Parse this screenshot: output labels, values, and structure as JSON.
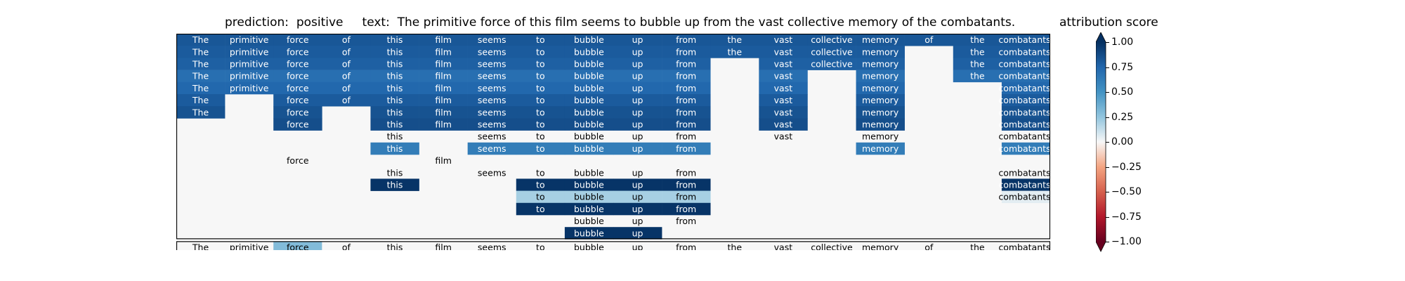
{
  "title": "prediction:  positive     text:  The primitive force of this film seems to bubble up from the vast collective memory of the combatants.",
  "colorbar": {
    "label": "attribution score",
    "ticks": [
      "1.00",
      "0.75",
      "0.50",
      "0.25",
      "0.00",
      "−0.25",
      "−0.50",
      "−0.75",
      "−1.00"
    ],
    "tick_values": [
      1,
      0.75,
      0.5,
      0.25,
      0,
      -0.25,
      -0.5,
      -0.75,
      -1
    ],
    "range": [
      -1,
      1
    ]
  },
  "chart_data": {
    "type": "heatmap",
    "tokens": [
      "The",
      "primitive",
      "force",
      "of",
      "this",
      "film",
      "seems",
      "to",
      "bubble",
      "up",
      "from",
      "the",
      "vast",
      "collective",
      "memory",
      "of",
      "the",
      "combatants."
    ],
    "rows": [
      {
        "vals": [
          0.82,
          0.82,
          0.82,
          0.82,
          0.82,
          0.82,
          0.82,
          0.82,
          0.82,
          0.82,
          0.82,
          0.82,
          0.82,
          0.82,
          0.82,
          0.82,
          0.82,
          0.82
        ],
        "labels": [
          1,
          1,
          1,
          1,
          1,
          1,
          1,
          1,
          1,
          1,
          1,
          1,
          1,
          1,
          1,
          1,
          1,
          1
        ]
      },
      {
        "vals": [
          0.8,
          0.8,
          0.8,
          0.8,
          0.8,
          0.8,
          0.8,
          0.8,
          0.8,
          0.8,
          0.8,
          0.8,
          0.8,
          0.8,
          0.8,
          0,
          0.8,
          0.8
        ],
        "labels": [
          1,
          1,
          1,
          1,
          1,
          1,
          1,
          1,
          1,
          1,
          1,
          1,
          1,
          1,
          1,
          0,
          1,
          1
        ]
      },
      {
        "vals": [
          0.78,
          0.78,
          0.78,
          0.78,
          0.78,
          0.78,
          0.78,
          0.78,
          0.78,
          0.78,
          0.78,
          0,
          0.78,
          0.78,
          0.78,
          0,
          0.78,
          0.78
        ],
        "labels": [
          1,
          1,
          1,
          1,
          1,
          1,
          1,
          1,
          1,
          1,
          1,
          0,
          1,
          1,
          1,
          0,
          1,
          1
        ]
      },
      {
        "vals": [
          0.7,
          0.7,
          0.7,
          0.7,
          0.7,
          0.7,
          0.7,
          0.7,
          0.7,
          0.7,
          0.7,
          0,
          0.7,
          0,
          0.7,
          0,
          0.7,
          0.7
        ],
        "labels": [
          1,
          1,
          1,
          1,
          1,
          1,
          1,
          1,
          1,
          1,
          1,
          0,
          1,
          0,
          1,
          0,
          1,
          1
        ]
      },
      {
        "vals": [
          0.74,
          0.74,
          0.74,
          0.74,
          0.74,
          0.74,
          0.74,
          0.74,
          0.74,
          0.74,
          0.74,
          0,
          0.74,
          0,
          0.74,
          0,
          0,
          0.74
        ],
        "labels": [
          1,
          1,
          1,
          1,
          1,
          1,
          1,
          1,
          1,
          1,
          1,
          0,
          1,
          0,
          1,
          0,
          0,
          1
        ]
      },
      {
        "vals": [
          0.8,
          0,
          0.8,
          0.8,
          0.8,
          0.8,
          0.8,
          0.8,
          0.8,
          0.8,
          0.8,
          0,
          0.8,
          0,
          0.8,
          0,
          0,
          0.8
        ],
        "labels": [
          1,
          0,
          1,
          1,
          1,
          1,
          1,
          1,
          1,
          1,
          1,
          0,
          1,
          0,
          1,
          0,
          0,
          1
        ]
      },
      {
        "vals": [
          0.84,
          0,
          0.84,
          0,
          0.84,
          0.84,
          0.84,
          0.84,
          0.84,
          0.84,
          0.84,
          0,
          0.84,
          0,
          0.84,
          0,
          0,
          0.84
        ],
        "labels": [
          1,
          0,
          1,
          0,
          1,
          1,
          1,
          1,
          1,
          1,
          1,
          0,
          1,
          0,
          1,
          0,
          0,
          1
        ]
      },
      {
        "vals": [
          0,
          0,
          0.86,
          0,
          0.86,
          0.86,
          0.86,
          0.86,
          0.86,
          0.86,
          0.86,
          0,
          0.86,
          0,
          0.86,
          0,
          0,
          0.86
        ],
        "labels": [
          0,
          0,
          1,
          0,
          1,
          1,
          1,
          1,
          1,
          1,
          1,
          0,
          1,
          0,
          1,
          0,
          0,
          1
        ]
      },
      {
        "vals": [
          0,
          0,
          0,
          0,
          0,
          0,
          0,
          0,
          0,
          0,
          0,
          0,
          0,
          0,
          0,
          0,
          0,
          0
        ],
        "labels": [
          0,
          0,
          0,
          0,
          1,
          0,
          1,
          1,
          1,
          1,
          1,
          0,
          1,
          0,
          1,
          0,
          0,
          1
        ]
      },
      {
        "vals": [
          0,
          0,
          0,
          0,
          0.62,
          0,
          0.62,
          0.62,
          0.62,
          0.62,
          0.62,
          0,
          0,
          0,
          0.62,
          0,
          0,
          0.62
        ],
        "labels": [
          0,
          0,
          0,
          0,
          1,
          0,
          1,
          1,
          1,
          1,
          1,
          0,
          0,
          0,
          1,
          0,
          0,
          1
        ]
      },
      {
        "vals": [
          0,
          0,
          0,
          0,
          0,
          0,
          0,
          0,
          0,
          0,
          0,
          0,
          0,
          0,
          0,
          0,
          0,
          0
        ],
        "labels": [
          0,
          0,
          1,
          0,
          0,
          1,
          0,
          0,
          0,
          0,
          0,
          0,
          0,
          0,
          0,
          0,
          0,
          0
        ]
      },
      {
        "vals": [
          0,
          0,
          0,
          0,
          0,
          0,
          0,
          0,
          0,
          0,
          0,
          0,
          0,
          0,
          0,
          0,
          0,
          0
        ],
        "labels": [
          0,
          0,
          0,
          0,
          1,
          0,
          1,
          1,
          1,
          1,
          1,
          0,
          0,
          0,
          0,
          0,
          0,
          1
        ]
      },
      {
        "vals": [
          0,
          0,
          0,
          0,
          0.98,
          0,
          0,
          0.98,
          0.98,
          0.98,
          0.98,
          0,
          0,
          0,
          0,
          0,
          0,
          0.98
        ],
        "labels": [
          0,
          0,
          0,
          0,
          1,
          0,
          0,
          1,
          1,
          1,
          1,
          0,
          0,
          0,
          0,
          0,
          0,
          1
        ]
      },
      {
        "vals": [
          0,
          0,
          0,
          0,
          0,
          0,
          0,
          0.2,
          0.2,
          0.2,
          0.2,
          0,
          0,
          0,
          0,
          0,
          0,
          0.05
        ],
        "labels": [
          0,
          0,
          0,
          0,
          0,
          0,
          0,
          1,
          1,
          1,
          1,
          0,
          0,
          0,
          0,
          0,
          0,
          1
        ]
      },
      {
        "vals": [
          0,
          0,
          0,
          0,
          0,
          0,
          0,
          0.98,
          0.98,
          0.98,
          0.98,
          0,
          0,
          0,
          0,
          0,
          0,
          0
        ],
        "labels": [
          0,
          0,
          0,
          0,
          0,
          0,
          0,
          1,
          1,
          1,
          1,
          0,
          0,
          0,
          0,
          0,
          0,
          0
        ]
      },
      {
        "vals": [
          0,
          0,
          0,
          0,
          0,
          0,
          0,
          0,
          0,
          0,
          0,
          0,
          0,
          0,
          0,
          0,
          0,
          0
        ],
        "labels": [
          0,
          0,
          0,
          0,
          0,
          0,
          0,
          0,
          1,
          1,
          1,
          0,
          0,
          0,
          0,
          0,
          0,
          0
        ]
      },
      {
        "vals": [
          0,
          0,
          0,
          0,
          0,
          0,
          0,
          0,
          0.98,
          0.98,
          0,
          0,
          0,
          0,
          0,
          0,
          0,
          0
        ],
        "labels": [
          0,
          0,
          0,
          0,
          0,
          0,
          0,
          0,
          1,
          1,
          0,
          0,
          0,
          0,
          0,
          0,
          0,
          0
        ]
      }
    ],
    "bottom_row": {
      "vals": [
        0,
        0,
        0.3,
        0,
        0,
        0,
        0,
        0,
        0,
        0,
        0,
        0,
        0,
        0,
        0,
        0,
        0,
        0
      ]
    },
    "colormap": "RdBu",
    "vmin": -1,
    "vmax": 1
  }
}
